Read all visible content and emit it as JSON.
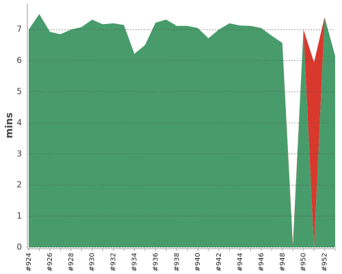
{
  "chart_data": {
    "type": "stacked_area",
    "y_label": "mins",
    "categories": [
      "#924",
      null,
      "#926",
      null,
      "#928",
      null,
      "#930",
      null,
      "#932",
      null,
      "#934",
      null,
      "#936",
      null,
      "#938",
      null,
      "#940",
      null,
      "#942",
      null,
      "#944",
      null,
      "#946",
      null,
      "#948",
      null,
      "#950",
      null,
      "#952",
      null
    ],
    "series": [
      {
        "color": "#489c6c",
        "values": [
          7.0,
          7.5,
          6.93,
          6.85,
          7.0,
          7.08,
          7.32,
          7.17,
          7.2,
          7.15,
          6.22,
          6.5,
          7.22,
          7.32,
          7.12,
          7.12,
          7.05,
          6.72,
          7.0,
          7.2,
          7.13,
          7.12,
          7.05,
          6.8,
          6.57,
          0,
          7.0,
          0,
          7.4,
          6.15
        ]
      },
      {
        "color": "#d9382d",
        "values": [
          0,
          0,
          0,
          0,
          0,
          0,
          0,
          0,
          0,
          0,
          0,
          0,
          0,
          0,
          0,
          0,
          0,
          0,
          0,
          0,
          0,
          0,
          0,
          0,
          0,
          0.1,
          0,
          5.95,
          0,
          0
        ]
      }
    ],
    "ylim": [
      0,
      7.84
    ],
    "yticks": [
      0,
      1,
      2,
      3,
      4,
      5,
      6,
      7
    ],
    "grid": true
  }
}
